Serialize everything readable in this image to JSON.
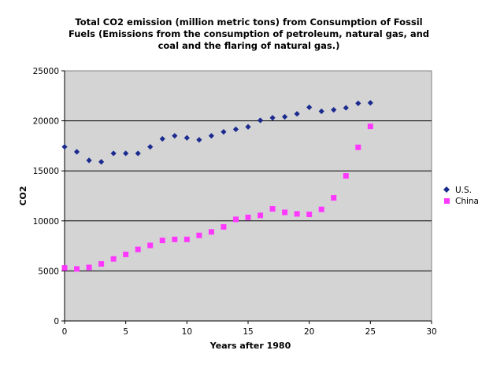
{
  "chart_data": {
    "type": "scatter",
    "title": [
      "Total CO2 emission (million metric tons) from Consumption of Fossil",
      "Fuels  (Emissions from the consumption of petroleum, natural gas, and",
      "coal and the flaring of natural gas.)"
    ],
    "xlabel": "Years after 1980",
    "ylabel": "CO2",
    "xlim": [
      0,
      30
    ],
    "ylim": [
      0,
      25000
    ],
    "xticks": [
      0,
      5,
      10,
      15,
      20,
      25,
      30
    ],
    "yticks": [
      0,
      5000,
      10000,
      15000,
      20000,
      25000
    ],
    "grid": "horizontal",
    "legend_position": "right",
    "plot_background": "#d4d4d4",
    "series": [
      {
        "name": "U.S.",
        "marker": "diamond",
        "color": "#1b2a8f",
        "x": [
          0,
          1,
          2,
          3,
          4,
          5,
          6,
          7,
          8,
          9,
          10,
          11,
          12,
          13,
          14,
          15,
          16,
          17,
          18,
          19,
          20,
          21,
          22,
          23,
          24,
          25
        ],
        "y": [
          17400,
          16900,
          16050,
          15900,
          16750,
          16750,
          16750,
          17400,
          18200,
          18500,
          18300,
          18100,
          18500,
          18900,
          19150,
          19400,
          20050,
          20300,
          20400,
          20700,
          21350,
          20950,
          21100,
          21300,
          21750,
          21800
        ]
      },
      {
        "name": "China",
        "marker": "square",
        "color": "#ff38ff",
        "x": [
          0,
          1,
          2,
          3,
          4,
          5,
          6,
          7,
          8,
          9,
          10,
          11,
          12,
          13,
          14,
          15,
          16,
          17,
          18,
          19,
          20,
          21,
          22,
          23,
          24,
          25
        ],
        "y": [
          5300,
          5200,
          5350,
          5700,
          6200,
          6650,
          7150,
          7550,
          8050,
          8150,
          8150,
          8550,
          8900,
          9400,
          10150,
          10350,
          10550,
          11200,
          10850,
          10700,
          10650,
          11150,
          12300,
          14500,
          17350,
          19450
        ]
      }
    ]
  }
}
